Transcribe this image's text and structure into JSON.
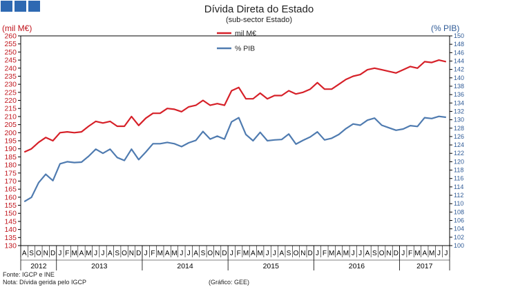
{
  "header": {
    "title": "Dívida Direta do Estado",
    "subtitle": "(sub-sector Estado)"
  },
  "brand_colors": [
    "#2e69b2",
    "#d62028",
    "#4f7bb0"
  ],
  "footnotes": {
    "source": "Fonte: IGCP e INE",
    "note": "Nota: Dívida gerida pelo IGCP",
    "credit": "(Gráfico: GEE)"
  },
  "chart_data": {
    "type": "line",
    "title": "Dívida Direta do Estado",
    "subtitle": "(sub-sector Estado)",
    "ylabel_left": "(mil M€)",
    "ylabel_right": "(% PIB)",
    "ylim_left": [
      130,
      260
    ],
    "ylim_right": [
      100,
      150
    ],
    "yticks_left": [
      "130",
      "135",
      "140",
      "145",
      "150",
      "155",
      "160",
      "165",
      "170",
      "175",
      "180",
      "185",
      "190",
      "195",
      "200",
      "205",
      "210",
      "215",
      "220",
      "225",
      "230",
      "235",
      "240",
      "245",
      "250",
      "255",
      "260"
    ],
    "yticks_right": [
      "100",
      "102",
      "104",
      "106",
      "108",
      "110",
      "112",
      "114",
      "116",
      "118",
      "120",
      "122",
      "124",
      "126",
      "128",
      "130",
      "132",
      "134",
      "136",
      "138",
      "140",
      "142",
      "144",
      "146",
      "148",
      "150"
    ],
    "grid": false,
    "legend_position": "top-center",
    "x_month_labels": [
      "A",
      "S",
      "O",
      "N",
      "D",
      "J",
      "F",
      "M",
      "A",
      "M",
      "J",
      "J",
      "A",
      "S",
      "O",
      "N",
      "D",
      "J",
      "F",
      "M",
      "A",
      "M",
      "J",
      "J",
      "A",
      "S",
      "O",
      "N",
      "D",
      "J",
      "F",
      "M",
      "A",
      "M",
      "J",
      "J",
      "A",
      "S",
      "O",
      "N",
      "D",
      "J",
      "F",
      "M",
      "A",
      "M",
      "J",
      "J",
      "A",
      "S",
      "O",
      "N",
      "D",
      "J",
      "F",
      "M",
      "A",
      "M",
      "J",
      "J"
    ],
    "x_year_groups": [
      {
        "label": "2012",
        "months": 5
      },
      {
        "label": "2013",
        "months": 12
      },
      {
        "label": "2014",
        "months": 12
      },
      {
        "label": "2015",
        "months": 12
      },
      {
        "label": "2016",
        "months": 12
      },
      {
        "label": "2017",
        "months": 7
      }
    ],
    "series": [
      {
        "name": "mil M€",
        "axis": "left",
        "color": "#d62028",
        "values": [
          188,
          190,
          194,
          197,
          195,
          200,
          200.5,
          200,
          200.5,
          204,
          207,
          206,
          207,
          204,
          204,
          210,
          204.5,
          209,
          212,
          212,
          215,
          214.5,
          213,
          216,
          217,
          220,
          217,
          218,
          217,
          226,
          228,
          221,
          221,
          224.5,
          221,
          223,
          223,
          226,
          224,
          225,
          227,
          231,
          227,
          227,
          230,
          233,
          235,
          236,
          239,
          240,
          239,
          238,
          237,
          239,
          241,
          240,
          244,
          243.5,
          245,
          244
        ]
      },
      {
        "name": "% PIB",
        "axis": "right",
        "color": "#4f7bb0",
        "values": [
          110.5,
          111.5,
          115,
          117,
          115.5,
          119.5,
          120,
          119.8,
          119.9,
          121.3,
          123,
          122,
          123,
          121,
          120.3,
          123,
          120.5,
          122.3,
          124.3,
          124.3,
          124.6,
          124.3,
          123.6,
          124.5,
          125.1,
          127.2,
          125.4,
          126.1,
          125.4,
          129.5,
          130.5,
          126.5,
          125,
          127,
          125,
          125.2,
          125.3,
          126.6,
          124.2,
          125.1,
          125.9,
          127.1,
          125.2,
          125.6,
          126.5,
          127.9,
          129,
          128.7,
          129.9,
          130.4,
          128.7,
          128.1,
          127.5,
          127.8,
          128.6,
          128.4,
          130.5,
          130.3,
          130.8,
          130.6
        ]
      }
    ]
  }
}
